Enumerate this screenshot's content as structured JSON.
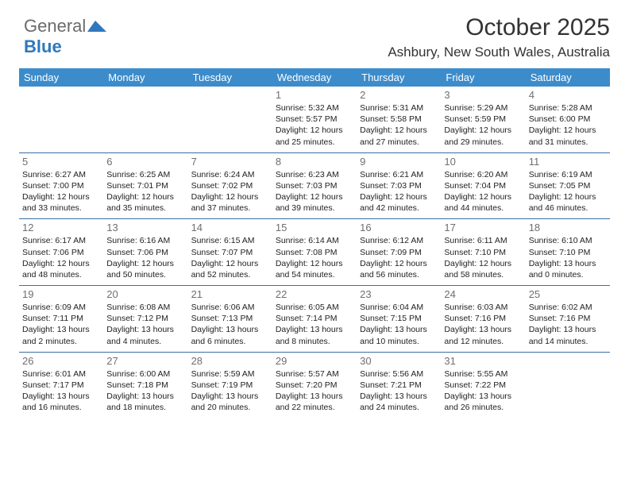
{
  "logo": {
    "text1": "General",
    "text2": "Blue"
  },
  "title": "October 2025",
  "location": "Ashbury, New South Wales, Australia",
  "colors": {
    "header_bg": "#3c8ccc",
    "header_text": "#ffffff",
    "row_border": "#3c6fa0",
    "daynum_color": "#6f6f6f",
    "text_color": "#222222",
    "title_color": "#333333",
    "logo_gray": "#6b6b6b",
    "logo_blue": "#2f78bd",
    "bg": "#ffffff"
  },
  "headers": [
    "Sunday",
    "Monday",
    "Tuesday",
    "Wednesday",
    "Thursday",
    "Friday",
    "Saturday"
  ],
  "weeks": [
    [
      null,
      null,
      null,
      {
        "d": "1",
        "sr": "5:32 AM",
        "ss": "5:57 PM",
        "dl": "12 hours and 25 minutes."
      },
      {
        "d": "2",
        "sr": "5:31 AM",
        "ss": "5:58 PM",
        "dl": "12 hours and 27 minutes."
      },
      {
        "d": "3",
        "sr": "5:29 AM",
        "ss": "5:59 PM",
        "dl": "12 hours and 29 minutes."
      },
      {
        "d": "4",
        "sr": "5:28 AM",
        "ss": "6:00 PM",
        "dl": "12 hours and 31 minutes."
      }
    ],
    [
      {
        "d": "5",
        "sr": "6:27 AM",
        "ss": "7:00 PM",
        "dl": "12 hours and 33 minutes."
      },
      {
        "d": "6",
        "sr": "6:25 AM",
        "ss": "7:01 PM",
        "dl": "12 hours and 35 minutes."
      },
      {
        "d": "7",
        "sr": "6:24 AM",
        "ss": "7:02 PM",
        "dl": "12 hours and 37 minutes."
      },
      {
        "d": "8",
        "sr": "6:23 AM",
        "ss": "7:03 PM",
        "dl": "12 hours and 39 minutes."
      },
      {
        "d": "9",
        "sr": "6:21 AM",
        "ss": "7:03 PM",
        "dl": "12 hours and 42 minutes."
      },
      {
        "d": "10",
        "sr": "6:20 AM",
        "ss": "7:04 PM",
        "dl": "12 hours and 44 minutes."
      },
      {
        "d": "11",
        "sr": "6:19 AM",
        "ss": "7:05 PM",
        "dl": "12 hours and 46 minutes."
      }
    ],
    [
      {
        "d": "12",
        "sr": "6:17 AM",
        "ss": "7:06 PM",
        "dl": "12 hours and 48 minutes."
      },
      {
        "d": "13",
        "sr": "6:16 AM",
        "ss": "7:06 PM",
        "dl": "12 hours and 50 minutes."
      },
      {
        "d": "14",
        "sr": "6:15 AM",
        "ss": "7:07 PM",
        "dl": "12 hours and 52 minutes."
      },
      {
        "d": "15",
        "sr": "6:14 AM",
        "ss": "7:08 PM",
        "dl": "12 hours and 54 minutes."
      },
      {
        "d": "16",
        "sr": "6:12 AM",
        "ss": "7:09 PM",
        "dl": "12 hours and 56 minutes."
      },
      {
        "d": "17",
        "sr": "6:11 AM",
        "ss": "7:10 PM",
        "dl": "12 hours and 58 minutes."
      },
      {
        "d": "18",
        "sr": "6:10 AM",
        "ss": "7:10 PM",
        "dl": "13 hours and 0 minutes."
      }
    ],
    [
      {
        "d": "19",
        "sr": "6:09 AM",
        "ss": "7:11 PM",
        "dl": "13 hours and 2 minutes."
      },
      {
        "d": "20",
        "sr": "6:08 AM",
        "ss": "7:12 PM",
        "dl": "13 hours and 4 minutes."
      },
      {
        "d": "21",
        "sr": "6:06 AM",
        "ss": "7:13 PM",
        "dl": "13 hours and 6 minutes."
      },
      {
        "d": "22",
        "sr": "6:05 AM",
        "ss": "7:14 PM",
        "dl": "13 hours and 8 minutes."
      },
      {
        "d": "23",
        "sr": "6:04 AM",
        "ss": "7:15 PM",
        "dl": "13 hours and 10 minutes."
      },
      {
        "d": "24",
        "sr": "6:03 AM",
        "ss": "7:16 PM",
        "dl": "13 hours and 12 minutes."
      },
      {
        "d": "25",
        "sr": "6:02 AM",
        "ss": "7:16 PM",
        "dl": "13 hours and 14 minutes."
      }
    ],
    [
      {
        "d": "26",
        "sr": "6:01 AM",
        "ss": "7:17 PM",
        "dl": "13 hours and 16 minutes."
      },
      {
        "d": "27",
        "sr": "6:00 AM",
        "ss": "7:18 PM",
        "dl": "13 hours and 18 minutes."
      },
      {
        "d": "28",
        "sr": "5:59 AM",
        "ss": "7:19 PM",
        "dl": "13 hours and 20 minutes."
      },
      {
        "d": "29",
        "sr": "5:57 AM",
        "ss": "7:20 PM",
        "dl": "13 hours and 22 minutes."
      },
      {
        "d": "30",
        "sr": "5:56 AM",
        "ss": "7:21 PM",
        "dl": "13 hours and 24 minutes."
      },
      {
        "d": "31",
        "sr": "5:55 AM",
        "ss": "7:22 PM",
        "dl": "13 hours and 26 minutes."
      },
      null
    ]
  ],
  "labels": {
    "sunrise": "Sunrise: ",
    "sunset": "Sunset: ",
    "daylight": "Daylight: "
  }
}
